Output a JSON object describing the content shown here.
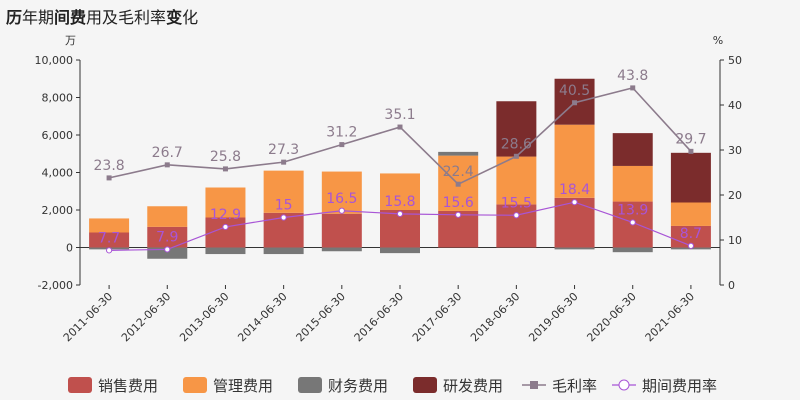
{
  "title_parts": [
    {
      "text": "历",
      "bold": true
    },
    {
      "text": "年期",
      "bold": false
    },
    {
      "text": "间费",
      "bold": true
    },
    {
      "text": "用及毛利率",
      "bold": false
    },
    {
      "text": "变",
      "bold": true
    },
    {
      "text": "化",
      "bold": false
    }
  ],
  "chart_data": {
    "type": "bar",
    "title": "历年期间费用及毛利率变化",
    "y_unit_left": "万",
    "y_unit_right": "%",
    "categories": [
      "2011-06-30",
      "2012-06-30",
      "2013-06-30",
      "2014-06-30",
      "2015-06-30",
      "2016-06-30",
      "2017-06-30",
      "2018-06-30",
      "2019-06-30",
      "2020-06-30",
      "2021-06-30"
    ],
    "ylim_left": [
      -2000,
      10000
    ],
    "yticks_left": [
      "-2,000",
      "0",
      "2,000",
      "4,000",
      "6,000",
      "8,000",
      "10,000"
    ],
    "yticks_left_values": [
      -2000,
      0,
      2000,
      4000,
      6000,
      8000,
      10000
    ],
    "ylim_right": [
      0,
      50
    ],
    "yticks_right": [
      "0",
      "10",
      "20",
      "30",
      "40",
      "50"
    ],
    "yticks_right_values": [
      0,
      10,
      20,
      30,
      40,
      50
    ],
    "stacked_series": [
      {
        "name": "销售费用",
        "color": "#c0504d",
        "values": [
          800,
          1100,
          1600,
          1850,
          1800,
          2000,
          1950,
          2300,
          2650,
          2450,
          1150
        ]
      },
      {
        "name": "管理费用",
        "color": "#f79646",
        "values": [
          750,
          1100,
          1600,
          2250,
          2250,
          1950,
          2950,
          2550,
          3900,
          1900,
          1250
        ]
      },
      {
        "name": "财务费用",
        "color": "#777777",
        "values": [
          -100,
          -600,
          -350,
          -350,
          -200,
          -300,
          200,
          0,
          -100,
          -250,
          -100
        ]
      },
      {
        "name": "研发费用",
        "color": "#7b2c2c",
        "values": [
          0,
          0,
          0,
          0,
          0,
          0,
          0,
          2950,
          2450,
          1750,
          2650
        ]
      }
    ],
    "line_series": [
      {
        "name": "毛利率",
        "color": "#8c7b8c",
        "marker": "square",
        "axis": "right",
        "values": [
          23.8,
          26.7,
          25.8,
          27.3,
          31.2,
          35.1,
          22.4,
          28.6,
          40.5,
          43.8,
          29.7
        ],
        "labels": [
          "23.8",
          "26.7",
          "25.8",
          "27.3",
          "31.2",
          "35.1",
          "22.4",
          "28.6",
          "40.5",
          "43.8",
          "29.7"
        ]
      },
      {
        "name": "期间费用率",
        "color": "#a855d6",
        "marker": "circle",
        "axis": "right",
        "values": [
          7.7,
          7.9,
          12.9,
          15,
          16.5,
          15.8,
          15.6,
          15.5,
          18.4,
          13.9,
          8.7
        ],
        "labels": [
          "7.7",
          "7.9",
          "12.9",
          "15",
          "16.5",
          "15.8",
          "15.6",
          "15.5",
          "18.4",
          "13.9",
          "8.7"
        ]
      }
    ],
    "legend_position": "bottom",
    "grid": false
  }
}
